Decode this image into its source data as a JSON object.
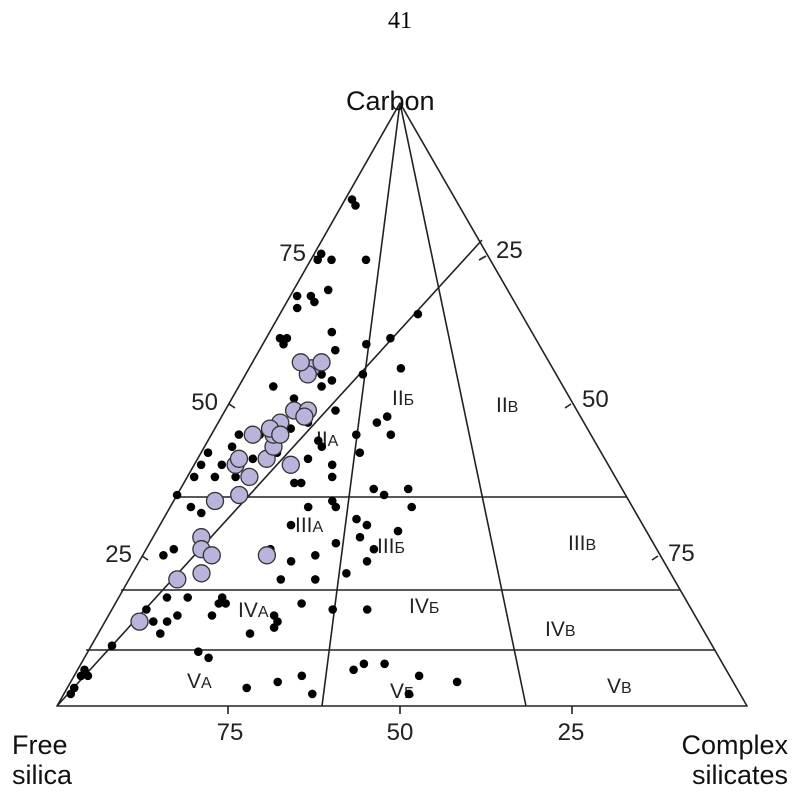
{
  "page_number": "41",
  "apex_label": "Carbon",
  "left_label": [
    "Free",
    "silica"
  ],
  "right_label": [
    "Complex",
    "silicates"
  ],
  "tick_labels": {
    "left_edge": [
      "75",
      "50",
      "25"
    ],
    "right_edge": [
      "25",
      "50",
      "75"
    ],
    "bottom_edge": [
      "75",
      "50",
      "25"
    ]
  },
  "region_labels": [
    {
      "roman": "II",
      "sub": "А"
    },
    {
      "roman": "II",
      "sub": "Б"
    },
    {
      "roman": "II",
      "sub": "В"
    },
    {
      "roman": "III",
      "sub": "А"
    },
    {
      "roman": "III",
      "sub": "Б"
    },
    {
      "roman": "III",
      "sub": "В"
    },
    {
      "roman": "IV",
      "sub": "А"
    },
    {
      "roman": "IV",
      "sub": "Б"
    },
    {
      "roman": "IV",
      "sub": "В"
    },
    {
      "roman": "V",
      "sub": "А"
    },
    {
      "roman": "V",
      "sub": "Б"
    },
    {
      "roman": "V",
      "sub": "В"
    }
  ],
  "colors": {
    "highlight_fill": "#b8b4dc",
    "point": "#000000",
    "line": "#222222"
  },
  "chart_data": {
    "type": "scatter",
    "series": [
      {
        "marker": "black-dot",
        "points": [
          [
            17,
            15
          ],
          [
            18,
            15
          ],
          [
            17,
            16
          ],
          [
            4,
            56
          ],
          [
            5,
            50
          ],
          [
            2,
            50
          ],
          [
            2,
            36
          ],
          [
            3,
            26
          ],
          [
            7,
            44
          ],
          [
            7,
            41
          ],
          [
            6,
            40
          ],
          [
            5,
            33
          ],
          [
            4,
            30
          ],
          [
            16,
            37
          ],
          [
            16,
            32
          ],
          [
            22,
            31
          ],
          [
            28,
            30
          ],
          [
            30,
            30
          ],
          [
            14,
            25
          ],
          [
            12,
            22
          ],
          [
            13,
            25
          ],
          [
            15,
            24
          ],
          [
            8,
            18
          ],
          [
            9,
            16
          ],
          [
            17,
            27
          ],
          [
            21,
            27
          ],
          [
            25,
            25
          ],
          [
            27,
            27
          ],
          [
            21,
            22
          ],
          [
            24,
            22
          ],
          [
            30,
            19
          ],
          [
            33,
            20
          ],
          [
            34,
            23
          ],
          [
            33,
            24
          ],
          [
            38,
            21
          ],
          [
            40,
            20
          ],
          [
            26,
            18
          ],
          [
            37,
            17
          ],
          [
            37,
            16
          ],
          [
            41,
            16
          ],
          [
            44,
            16
          ],
          [
            43,
            17
          ],
          [
            49,
            16
          ],
          [
            45,
            21
          ],
          [
            42,
            23
          ],
          [
            47,
            23
          ],
          [
            45,
            26
          ],
          [
            48,
            24
          ],
          [
            31,
            28
          ],
          [
            36,
            28
          ],
          [
            35,
            30
          ],
          [
            36,
            33
          ],
          [
            26,
            33
          ],
          [
            24,
            33
          ],
          [
            29,
            35
          ],
          [
            33,
            35
          ],
          [
            32,
            5
          ],
          [
            38,
            7
          ],
          [
            41,
            8
          ],
          [
            51,
            9
          ],
          [
            47,
            13
          ],
          [
            46,
            11
          ],
          [
            42,
            11
          ],
          [
            45,
            7
          ],
          [
            40,
            4
          ],
          [
            55,
            11
          ],
          [
            55,
            17
          ],
          [
            56,
            22
          ],
          [
            49,
            12
          ],
          [
            53,
            12
          ],
          [
            60,
            15
          ],
          [
            61,
            18
          ],
          [
            65,
            20
          ],
          [
            18,
            10
          ],
          [
            18,
            7
          ],
          [
            14,
            7
          ],
          [
            14,
            9
          ],
          [
            15,
            10
          ],
          [
            15,
            15
          ],
          [
            25,
            3
          ],
          [
            26,
            4
          ],
          [
            33,
            3
          ],
          [
            38,
            4
          ],
          [
            42,
            1
          ],
          [
            43,
            4
          ],
          [
            45,
            4
          ],
          [
            53,
            5
          ],
          [
            60,
            3
          ],
          [
            61,
            3
          ],
          [
            61,
            2
          ],
          [
            66,
            2
          ],
          [
            68,
            3
          ],
          [
            54,
            13
          ],
          [
            59,
            11
          ],
          [
            62,
            9
          ],
          [
            67,
            4
          ],
          [
            68,
            1
          ],
          [
            69,
            5
          ],
          [
            74,
            1
          ],
          [
            75,
            1
          ],
          [
            83,
            2
          ],
          [
            84,
            1
          ],
          [
            6,
            1
          ],
          [
            5,
            1
          ],
          [
            5,
            2
          ],
          [
            3,
            1
          ],
          [
            2,
            1
          ],
          [
            10,
            3
          ],
          [
            12,
            9
          ],
          [
            16,
            5
          ],
          [
            35,
            0
          ],
          [
            38,
            1
          ],
          [
            40,
            1
          ],
          [
            74,
            3
          ],
          [
            74,
            8
          ]
        ]
      },
      {
        "marker": "highlight-circle",
        "points": [
          [
            25,
            18
          ],
          [
            28,
            7
          ],
          [
            26,
            8
          ],
          [
            21,
            7
          ],
          [
            22,
            10
          ],
          [
            25,
            10
          ],
          [
            40,
            14
          ],
          [
            35,
            9
          ],
          [
            41,
            10
          ],
          [
            43,
            10
          ],
          [
            45,
            9
          ],
          [
            38,
            9
          ],
          [
            40,
            6
          ],
          [
            45,
            6
          ],
          [
            47,
            9
          ],
          [
            49,
            10
          ],
          [
            46,
            8
          ],
          [
            41,
            6
          ],
          [
            34,
            6
          ],
          [
            14,
            5
          ],
          [
            49,
            12
          ],
          [
            48,
            12
          ],
          [
            45,
            10
          ],
          [
            56,
            9
          ],
          [
            55,
            9
          ],
          [
            57,
            7
          ],
          [
            57,
            10
          ]
        ]
      }
    ]
  }
}
